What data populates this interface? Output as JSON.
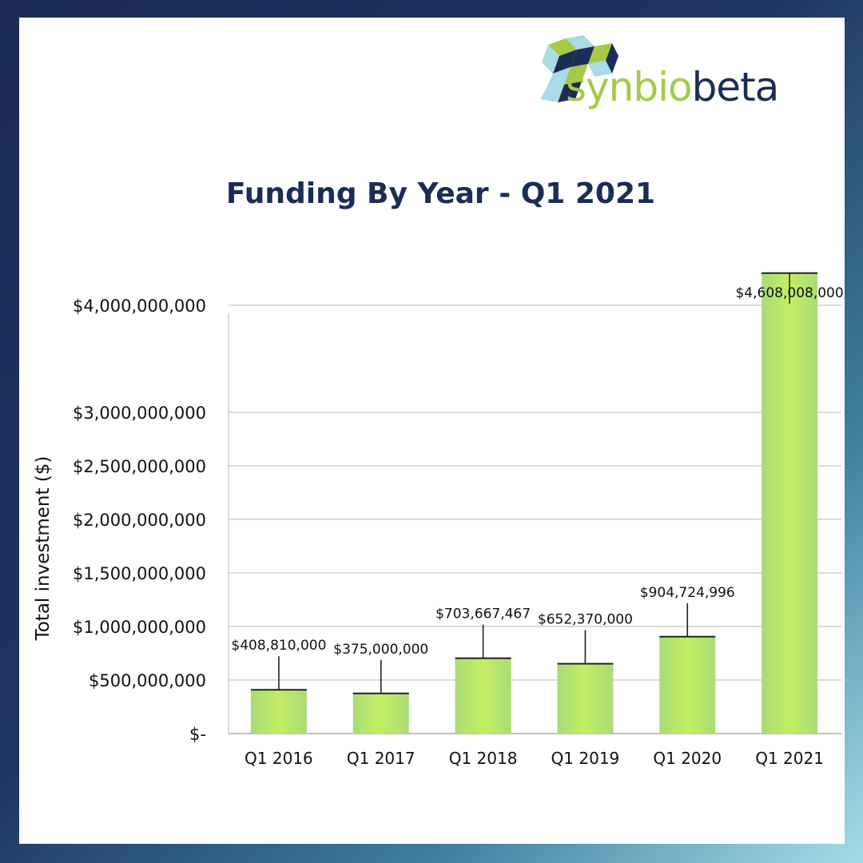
{
  "brand": {
    "name_part1": "synbio",
    "name_part2": "beta",
    "colors": {
      "green": "#a6c94a",
      "navy": "#1b2d55",
      "light_blue": "#a8dbe6"
    }
  },
  "chart_data": {
    "type": "bar",
    "title": "Funding By Year - Q1 2021",
    "xlabel": "",
    "ylabel": "Total investment ($)",
    "categories": [
      "Q1  2016",
      "Q1  2017",
      "Q1  2018",
      "Q1  2019",
      "Q1  2020",
      "Q1  2021"
    ],
    "values": [
      408810000,
      375000000,
      703667467,
      652370000,
      904724996,
      4608008000
    ],
    "data_labels": [
      "$408,810,000",
      "$375,000,000",
      "$703,667,467",
      "$652,370,000",
      "$904,724,996",
      "$4,608,008,000"
    ],
    "y_ticks": [
      {
        "value": 0,
        "label": "$-"
      },
      {
        "value": 500000000,
        "label": "$500,000,000"
      },
      {
        "value": 1000000000,
        "label": "$1,000,000,000"
      },
      {
        "value": 1500000000,
        "label": "$1,500,000,000"
      },
      {
        "value": 2000000000,
        "label": "$2,000,000,000"
      },
      {
        "value": 2500000000,
        "label": "$2,500,000,000"
      },
      {
        "value": 3000000000,
        "label": "$3,000,000,000"
      },
      {
        "value": 4000000000,
        "label": "$4,000,000,000"
      }
    ],
    "grid": true,
    "legend": "none",
    "bar_color": "#bfe96a"
  }
}
